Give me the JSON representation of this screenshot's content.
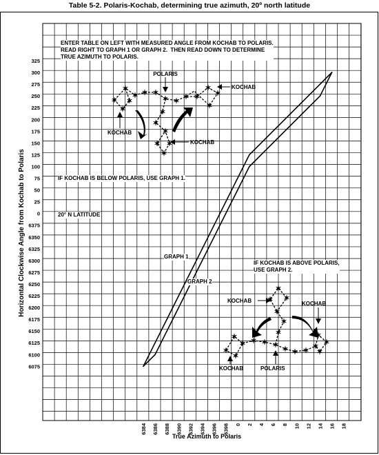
{
  "page_title": "Table 5-2.  Polaris-Kochab, determining true azimuth, 20º north latitude",
  "chart_data": {
    "type": "line",
    "title": "Table 5-2.  Polaris-Kochab, determining true azimuth, 20º north latitude",
    "xlabel": "True Azimuth to Polaris",
    "ylabel": "Horizontal Clockwise Angle from Kochab to Polaris",
    "x_ticks": [
      "6384",
      "6386",
      "6388",
      "6390",
      "6392",
      "6394",
      "6396",
      "6398",
      "0",
      "2",
      "4",
      "6",
      "8",
      "10",
      "12",
      "14",
      "16",
      "18"
    ],
    "y_ticks": [
      "325",
      "300",
      "275",
      "250",
      "225",
      "200",
      "175",
      "150",
      "125",
      "100",
      "75",
      "50",
      "25",
      "0",
      "6375",
      "6350",
      "6325",
      "6300",
      "6275",
      "6250",
      "6225",
      "6200",
      "6175",
      "6150",
      "6125",
      "6100",
      "6075"
    ],
    "grid": true,
    "series": [
      {
        "name": "GRAPH 1",
        "x": [
          "6384",
          "6386",
          "6388",
          "6390",
          "6392",
          "6394",
          "6396",
          "6398",
          "0",
          "2",
          "4",
          "6",
          "8",
          "10",
          "12",
          "14",
          "16"
        ],
        "y": [
          "6075",
          "6125",
          "6175",
          "6225",
          "6275",
          "6325",
          "6375",
          "25",
          "75",
          "125",
          "150",
          "175",
          "200",
          "225",
          "250",
          "275",
          "300"
        ]
      },
      {
        "name": "GRAPH 2",
        "x": [
          "6384",
          "6386",
          "6388",
          "6390",
          "6392",
          "6394",
          "6396",
          "6398",
          "0",
          "2",
          "4",
          "6",
          "8",
          "10",
          "12",
          "14",
          "16"
        ],
        "y": [
          "6075",
          "6100",
          "6150",
          "6200",
          "6250",
          "6300",
          "6350",
          "0",
          "50",
          "100",
          "125",
          "150",
          "175",
          "200",
          "225",
          "250",
          "300"
        ]
      }
    ],
    "annotations": {
      "instructions": "ENTER TABLE ON LEFT WITH MEASURED ANGLE FROM KOCHAB TO POLARIS.\nREAD RIGHT TO GRAPH 1 OR GRAPH 2.  THEN READ DOWN TO DETERMINE\nTRUE AZIMUTH TO POLARIS.",
      "below": "IF KOCHAB IS BELOW POLARIS, USE GRAPH 1.",
      "latitude": "20° N LATITUDE",
      "above": "IF KOCHAB IS ABOVE POLARIS,\nUSE GRAPH 2.",
      "graph1": "GRAPH 1",
      "graph2": "GRAPH 2",
      "top_polaris": "POLARIS",
      "top_kochab_right": "KOCHAB",
      "top_kochab_left": "KOCHAB",
      "top_kochab_bottom": "KOCHAB",
      "bot_kochab_top": "KOCHAB",
      "bot_kochab_right": "KOCHAB",
      "bot_kochab_bottom": "KOCHAB",
      "bot_polaris": "POLARIS"
    }
  }
}
